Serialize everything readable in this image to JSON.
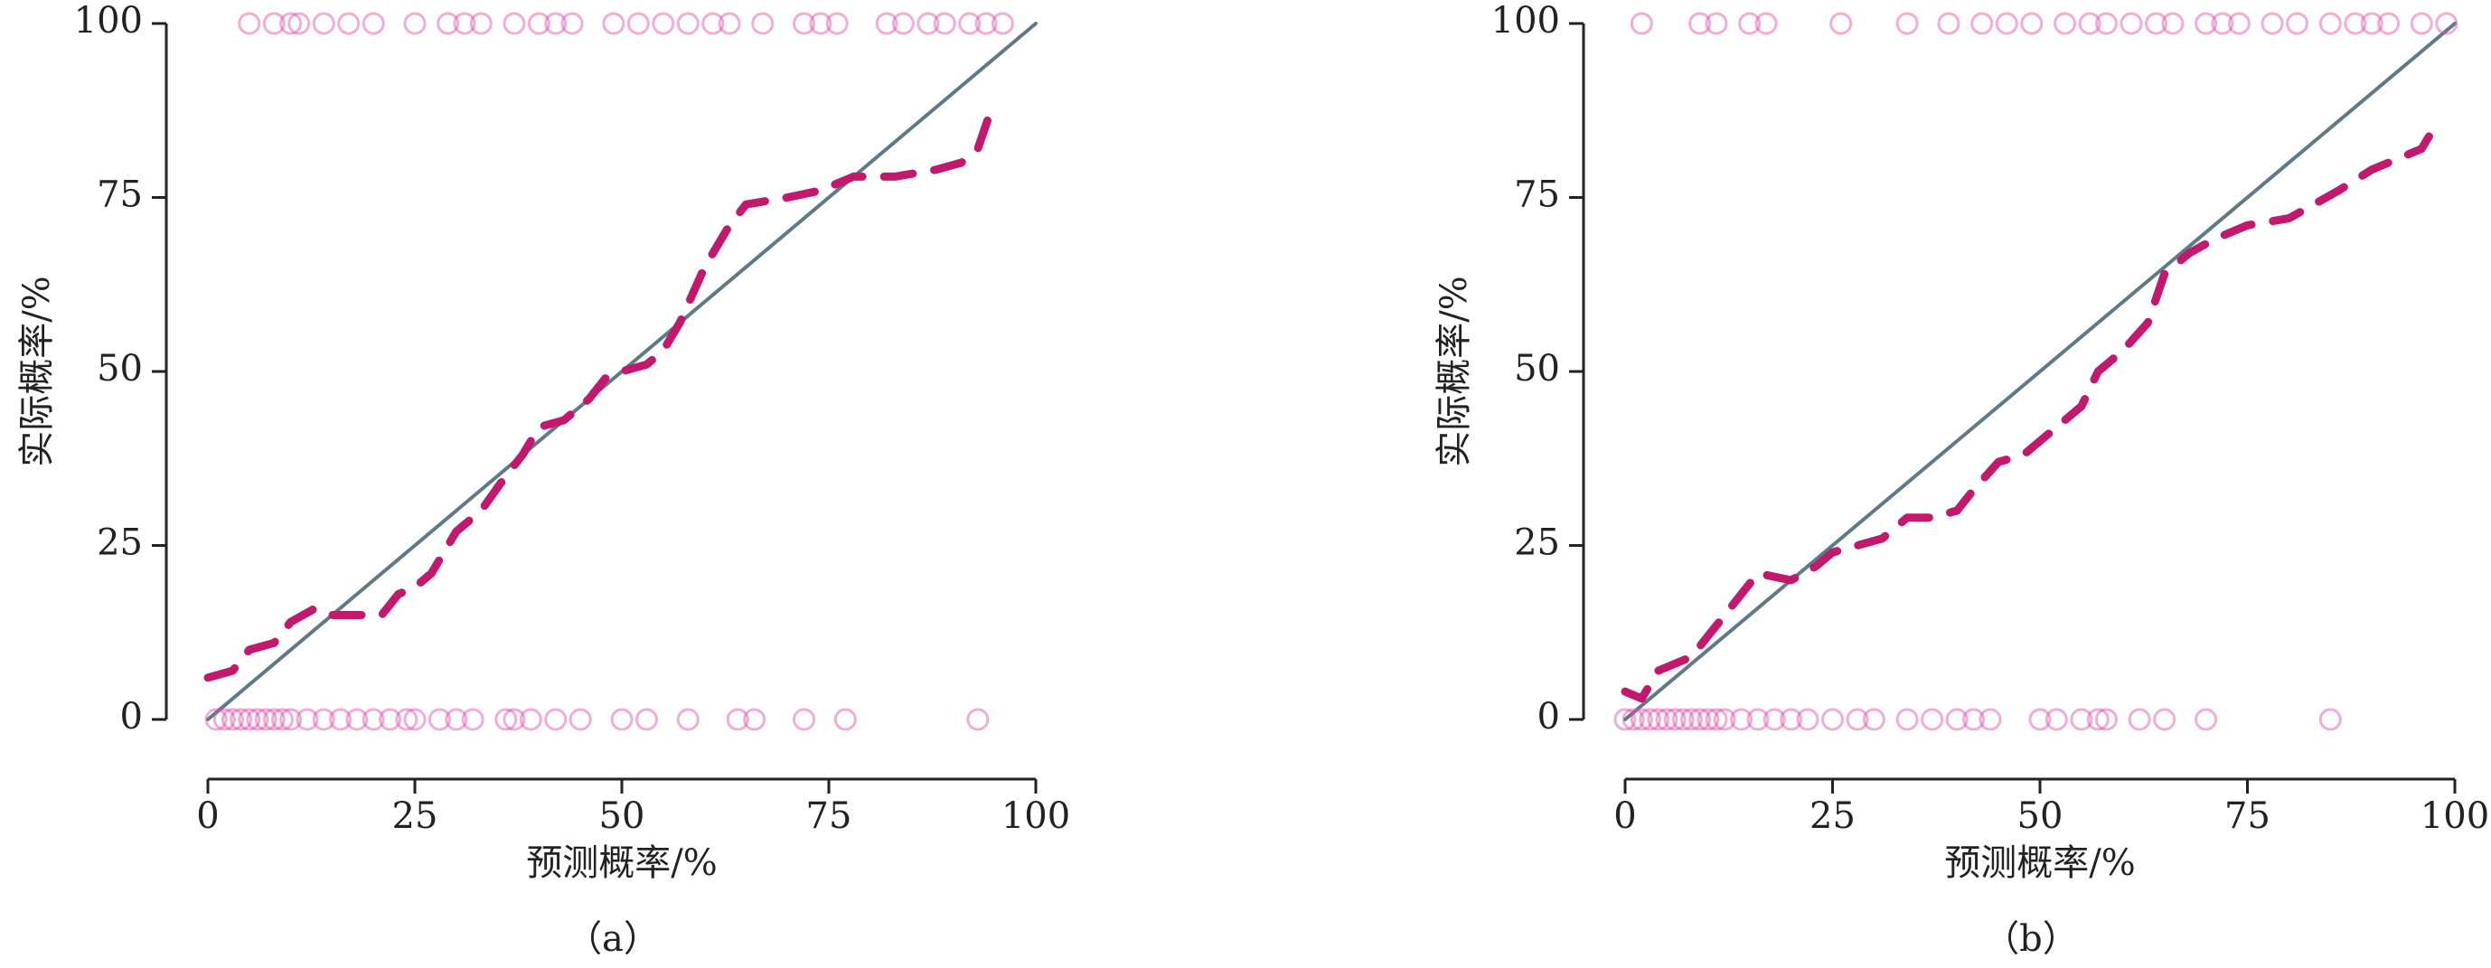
{
  "chart_data": [
    {
      "type": "line",
      "caption": "（a）",
      "xlabel": "预测概率/%",
      "ylabel": "实际概率/%",
      "xlim": [
        0,
        100
      ],
      "ylim": [
        0,
        100
      ],
      "xticks": [
        0,
        25,
        50,
        75,
        100
      ],
      "yticks": [
        0,
        25,
        50,
        75,
        100
      ],
      "series": [
        {
          "color": "#5f7a84",
          "style": "solid",
          "x": [
            0,
            100
          ],
          "values": [
            0,
            100
          ]
        },
        {
          "color": "#c2186e",
          "style": "dashed",
          "x": [
            0,
            3,
            5,
            8,
            10,
            13,
            15,
            18,
            21,
            23,
            25,
            27,
            30,
            33,
            36,
            38,
            40,
            43,
            46,
            48,
            50,
            53,
            55,
            57,
            60,
            63,
            65,
            70,
            74,
            78,
            83,
            88,
            91,
            93,
            95
          ],
          "values": [
            6,
            7,
            10,
            11,
            14,
            16,
            15,
            15,
            15,
            18,
            19,
            21,
            27,
            30,
            35,
            38,
            42,
            43,
            46,
            49,
            50,
            51,
            53,
            57,
            65,
            71,
            74,
            75,
            76,
            78,
            78,
            79,
            80,
            82,
            89
          ]
        },
        {
          "color": "#e04aa8",
          "style": "points",
          "x": [
            5,
            8,
            10,
            11,
            14,
            17,
            20,
            25,
            29,
            31,
            33,
            37,
            40,
            42,
            44,
            49,
            52,
            55,
            58,
            61,
            63,
            67,
            72,
            74,
            76,
            82,
            84,
            87,
            89,
            92,
            94,
            96,
            1,
            2,
            3,
            4,
            5,
            6,
            7,
            8,
            9,
            10,
            12,
            14,
            16,
            18,
            20,
            22,
            24,
            25,
            28,
            30,
            32,
            36,
            37,
            39,
            42,
            45,
            50,
            53,
            58,
            64,
            66,
            72,
            77,
            93
          ],
          "values": [
            100,
            100,
            100,
            100,
            100,
            100,
            100,
            100,
            100,
            100,
            100,
            100,
            100,
            100,
            100,
            100,
            100,
            100,
            100,
            100,
            100,
            100,
            100,
            100,
            100,
            100,
            100,
            100,
            100,
            100,
            100,
            100,
            0,
            0,
            0,
            0,
            0,
            0,
            0,
            0,
            0,
            0,
            0,
            0,
            0,
            0,
            0,
            0,
            0,
            0,
            0,
            0,
            0,
            0,
            0,
            0,
            0,
            0,
            0,
            0,
            0,
            0,
            0,
            0,
            0,
            0
          ]
        }
      ]
    },
    {
      "type": "line",
      "caption": "（b）",
      "xlabel": "预测概率/%",
      "ylabel": "实际概率/%",
      "xlim": [
        0,
        100
      ],
      "ylim": [
        0,
        100
      ],
      "xticks": [
        0,
        25,
        50,
        75,
        100
      ],
      "yticks": [
        0,
        25,
        50,
        75,
        100
      ],
      "series": [
        {
          "color": "#5f7a84",
          "style": "solid",
          "x": [
            0,
            100
          ],
          "values": [
            0,
            100
          ]
        },
        {
          "color": "#c2186e",
          "style": "dashed",
          "x": [
            0,
            2,
            4,
            6,
            8,
            10,
            12,
            14,
            16,
            20,
            23,
            25,
            28,
            31,
            34,
            37,
            40,
            42,
            45,
            48,
            52,
            55,
            57,
            60,
            63,
            65,
            68,
            71,
            75,
            80,
            83,
            86,
            90,
            94,
            96,
            98
          ],
          "values": [
            4,
            3,
            7,
            8,
            9,
            12,
            15,
            18,
            21,
            20,
            22,
            24,
            25,
            26,
            29,
            29,
            30,
            33,
            37,
            38,
            42,
            45,
            50,
            53,
            57,
            64,
            67,
            69,
            71,
            72,
            74,
            76,
            79,
            81,
            82,
            86
          ]
        },
        {
          "color": "#e04aa8",
          "style": "points",
          "x": [
            2,
            9,
            11,
            15,
            17,
            26,
            34,
            39,
            43,
            46,
            49,
            53,
            56,
            58,
            61,
            64,
            66,
            70,
            72,
            74,
            78,
            81,
            85,
            88,
            90,
            92,
            96,
            99,
            0,
            1,
            2,
            3,
            4,
            5,
            6,
            7,
            8,
            9,
            10,
            11,
            12,
            14,
            16,
            18,
            20,
            22,
            25,
            28,
            30,
            34,
            37,
            40,
            42,
            44,
            50,
            52,
            55,
            57,
            58,
            62,
            65,
            70,
            85
          ],
          "values": [
            100,
            100,
            100,
            100,
            100,
            100,
            100,
            100,
            100,
            100,
            100,
            100,
            100,
            100,
            100,
            100,
            100,
            100,
            100,
            100,
            100,
            100,
            100,
            100,
            100,
            100,
            100,
            100,
            0,
            0,
            0,
            0,
            0,
            0,
            0,
            0,
            0,
            0,
            0,
            0,
            0,
            0,
            0,
            0,
            0,
            0,
            0,
            0,
            0,
            0,
            0,
            0,
            0,
            0,
            0,
            0,
            0,
            0,
            0,
            0,
            0,
            0,
            0
          ]
        }
      ]
    }
  ]
}
